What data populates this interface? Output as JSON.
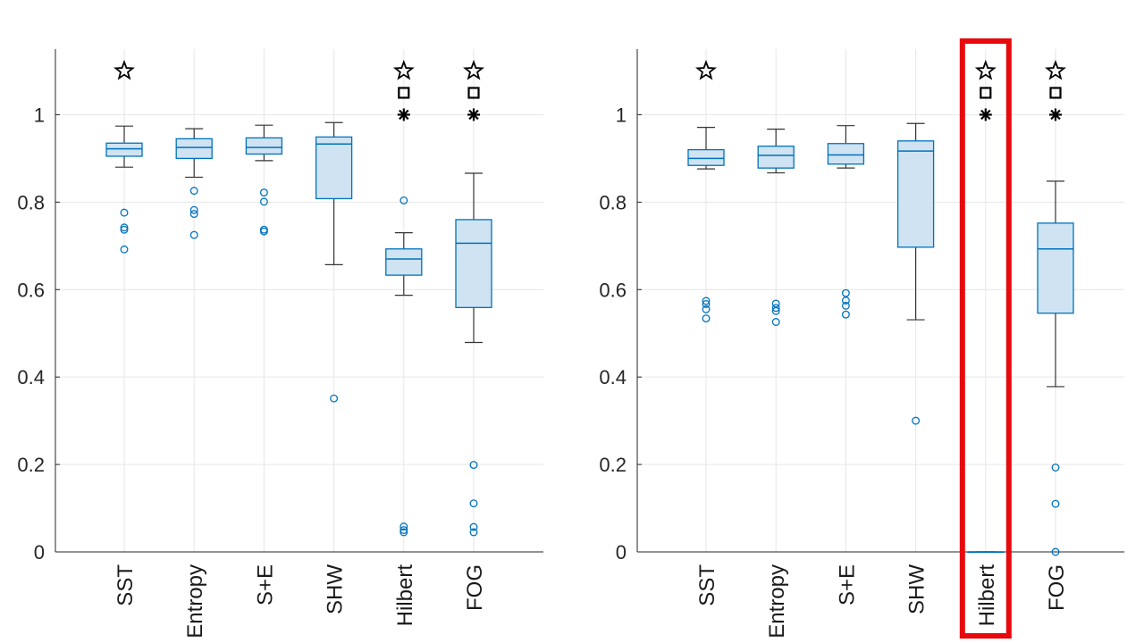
{
  "chart_data": [
    {
      "type": "box",
      "panel": "left",
      "title": "",
      "xlabel": "",
      "ylabel": "",
      "ylim": [
        0,
        1.15
      ],
      "yticks": [
        0,
        0.2,
        0.4,
        0.6,
        0.8,
        1
      ],
      "grid": true,
      "categories": [
        "SST",
        "Entropy",
        "S+E",
        "SHW",
        "Hilbert",
        "FOG"
      ],
      "boxes": [
        {
          "label": "SST",
          "q1": 0.905,
          "median": 0.922,
          "q3": 0.935,
          "whisker_low": 0.88,
          "whisker_high": 0.974,
          "outliers": [
            0.776,
            0.742,
            0.737,
            0.692
          ],
          "markers": [
            "star"
          ]
        },
        {
          "label": "Entropy",
          "q1": 0.9,
          "median": 0.925,
          "q3": 0.945,
          "whisker_low": 0.857,
          "whisker_high": 0.968,
          "outliers": [
            0.826,
            0.782,
            0.773,
            0.725
          ],
          "markers": []
        },
        {
          "label": "S+E",
          "q1": 0.91,
          "median": 0.925,
          "q3": 0.947,
          "whisker_low": 0.895,
          "whisker_high": 0.976,
          "outliers": [
            0.822,
            0.801,
            0.737,
            0.733
          ],
          "markers": []
        },
        {
          "label": "SHW",
          "q1": 0.808,
          "median": 0.933,
          "q3": 0.949,
          "whisker_low": 0.657,
          "whisker_high": 0.982,
          "outliers": [
            0.351
          ],
          "markers": []
        },
        {
          "label": "Hilbert",
          "q1": 0.633,
          "median": 0.67,
          "q3": 0.693,
          "whisker_low": 0.587,
          "whisker_high": 0.73,
          "outliers": [
            0.804,
            0.058,
            0.05,
            0.045
          ],
          "markers": [
            "star",
            "square",
            "asterisk"
          ]
        },
        {
          "label": "FOG",
          "q1": 0.559,
          "median": 0.706,
          "q3": 0.76,
          "whisker_low": 0.479,
          "whisker_high": 0.866,
          "outliers": [
            0.199,
            0.111,
            0.057,
            0.045
          ],
          "markers": [
            "star",
            "square",
            "asterisk"
          ]
        }
      ],
      "highlight": null
    },
    {
      "type": "box",
      "panel": "right",
      "title": "",
      "xlabel": "",
      "ylabel": "",
      "ylim": [
        0,
        1.15
      ],
      "yticks": [
        0,
        0.2,
        0.4,
        0.6,
        0.8,
        1
      ],
      "grid": true,
      "categories": [
        "SST",
        "Entropy",
        "S+E",
        "SHW",
        "Hilbert",
        "FOG"
      ],
      "boxes": [
        {
          "label": "SST",
          "q1": 0.884,
          "median": 0.9,
          "q3": 0.92,
          "whisker_low": 0.876,
          "whisker_high": 0.971,
          "outliers": [
            0.574,
            0.567,
            0.555,
            0.534
          ],
          "markers": [
            "star"
          ]
        },
        {
          "label": "Entropy",
          "q1": 0.878,
          "median": 0.907,
          "q3": 0.928,
          "whisker_low": 0.867,
          "whisker_high": 0.967,
          "outliers": [
            0.568,
            0.558,
            0.551,
            0.526
          ],
          "markers": []
        },
        {
          "label": "S+E",
          "q1": 0.887,
          "median": 0.908,
          "q3": 0.934,
          "whisker_low": 0.878,
          "whisker_high": 0.975,
          "outliers": [
            0.592,
            0.575,
            0.563,
            0.543
          ],
          "markers": []
        },
        {
          "label": "SHW",
          "q1": 0.697,
          "median": 0.917,
          "q3": 0.94,
          "whisker_low": 0.531,
          "whisker_high": 0.98,
          "outliers": [
            0.3
          ],
          "markers": []
        },
        {
          "label": "Hilbert",
          "q1": 0,
          "median": 0,
          "q3": 0,
          "whisker_low": 0,
          "whisker_high": 0,
          "outliers": [],
          "markers": [
            "star",
            "square",
            "asterisk"
          ]
        },
        {
          "label": "FOG",
          "q1": 0.546,
          "median": 0.693,
          "q3": 0.752,
          "whisker_low": 0.378,
          "whisker_high": 0.848,
          "outliers": [
            0.193,
            0.11,
            0.0
          ],
          "markers": [
            "star",
            "square",
            "asterisk"
          ]
        }
      ],
      "highlight": {
        "category": "Hilbert",
        "color": "#e8090d"
      }
    }
  ],
  "colors": {
    "box_edge": "#0072bd",
    "box_fill": "#cfe3f2",
    "whisker": "#333333",
    "grid": "#e6e6e6",
    "axis": "#262626",
    "marker": "#000000"
  }
}
